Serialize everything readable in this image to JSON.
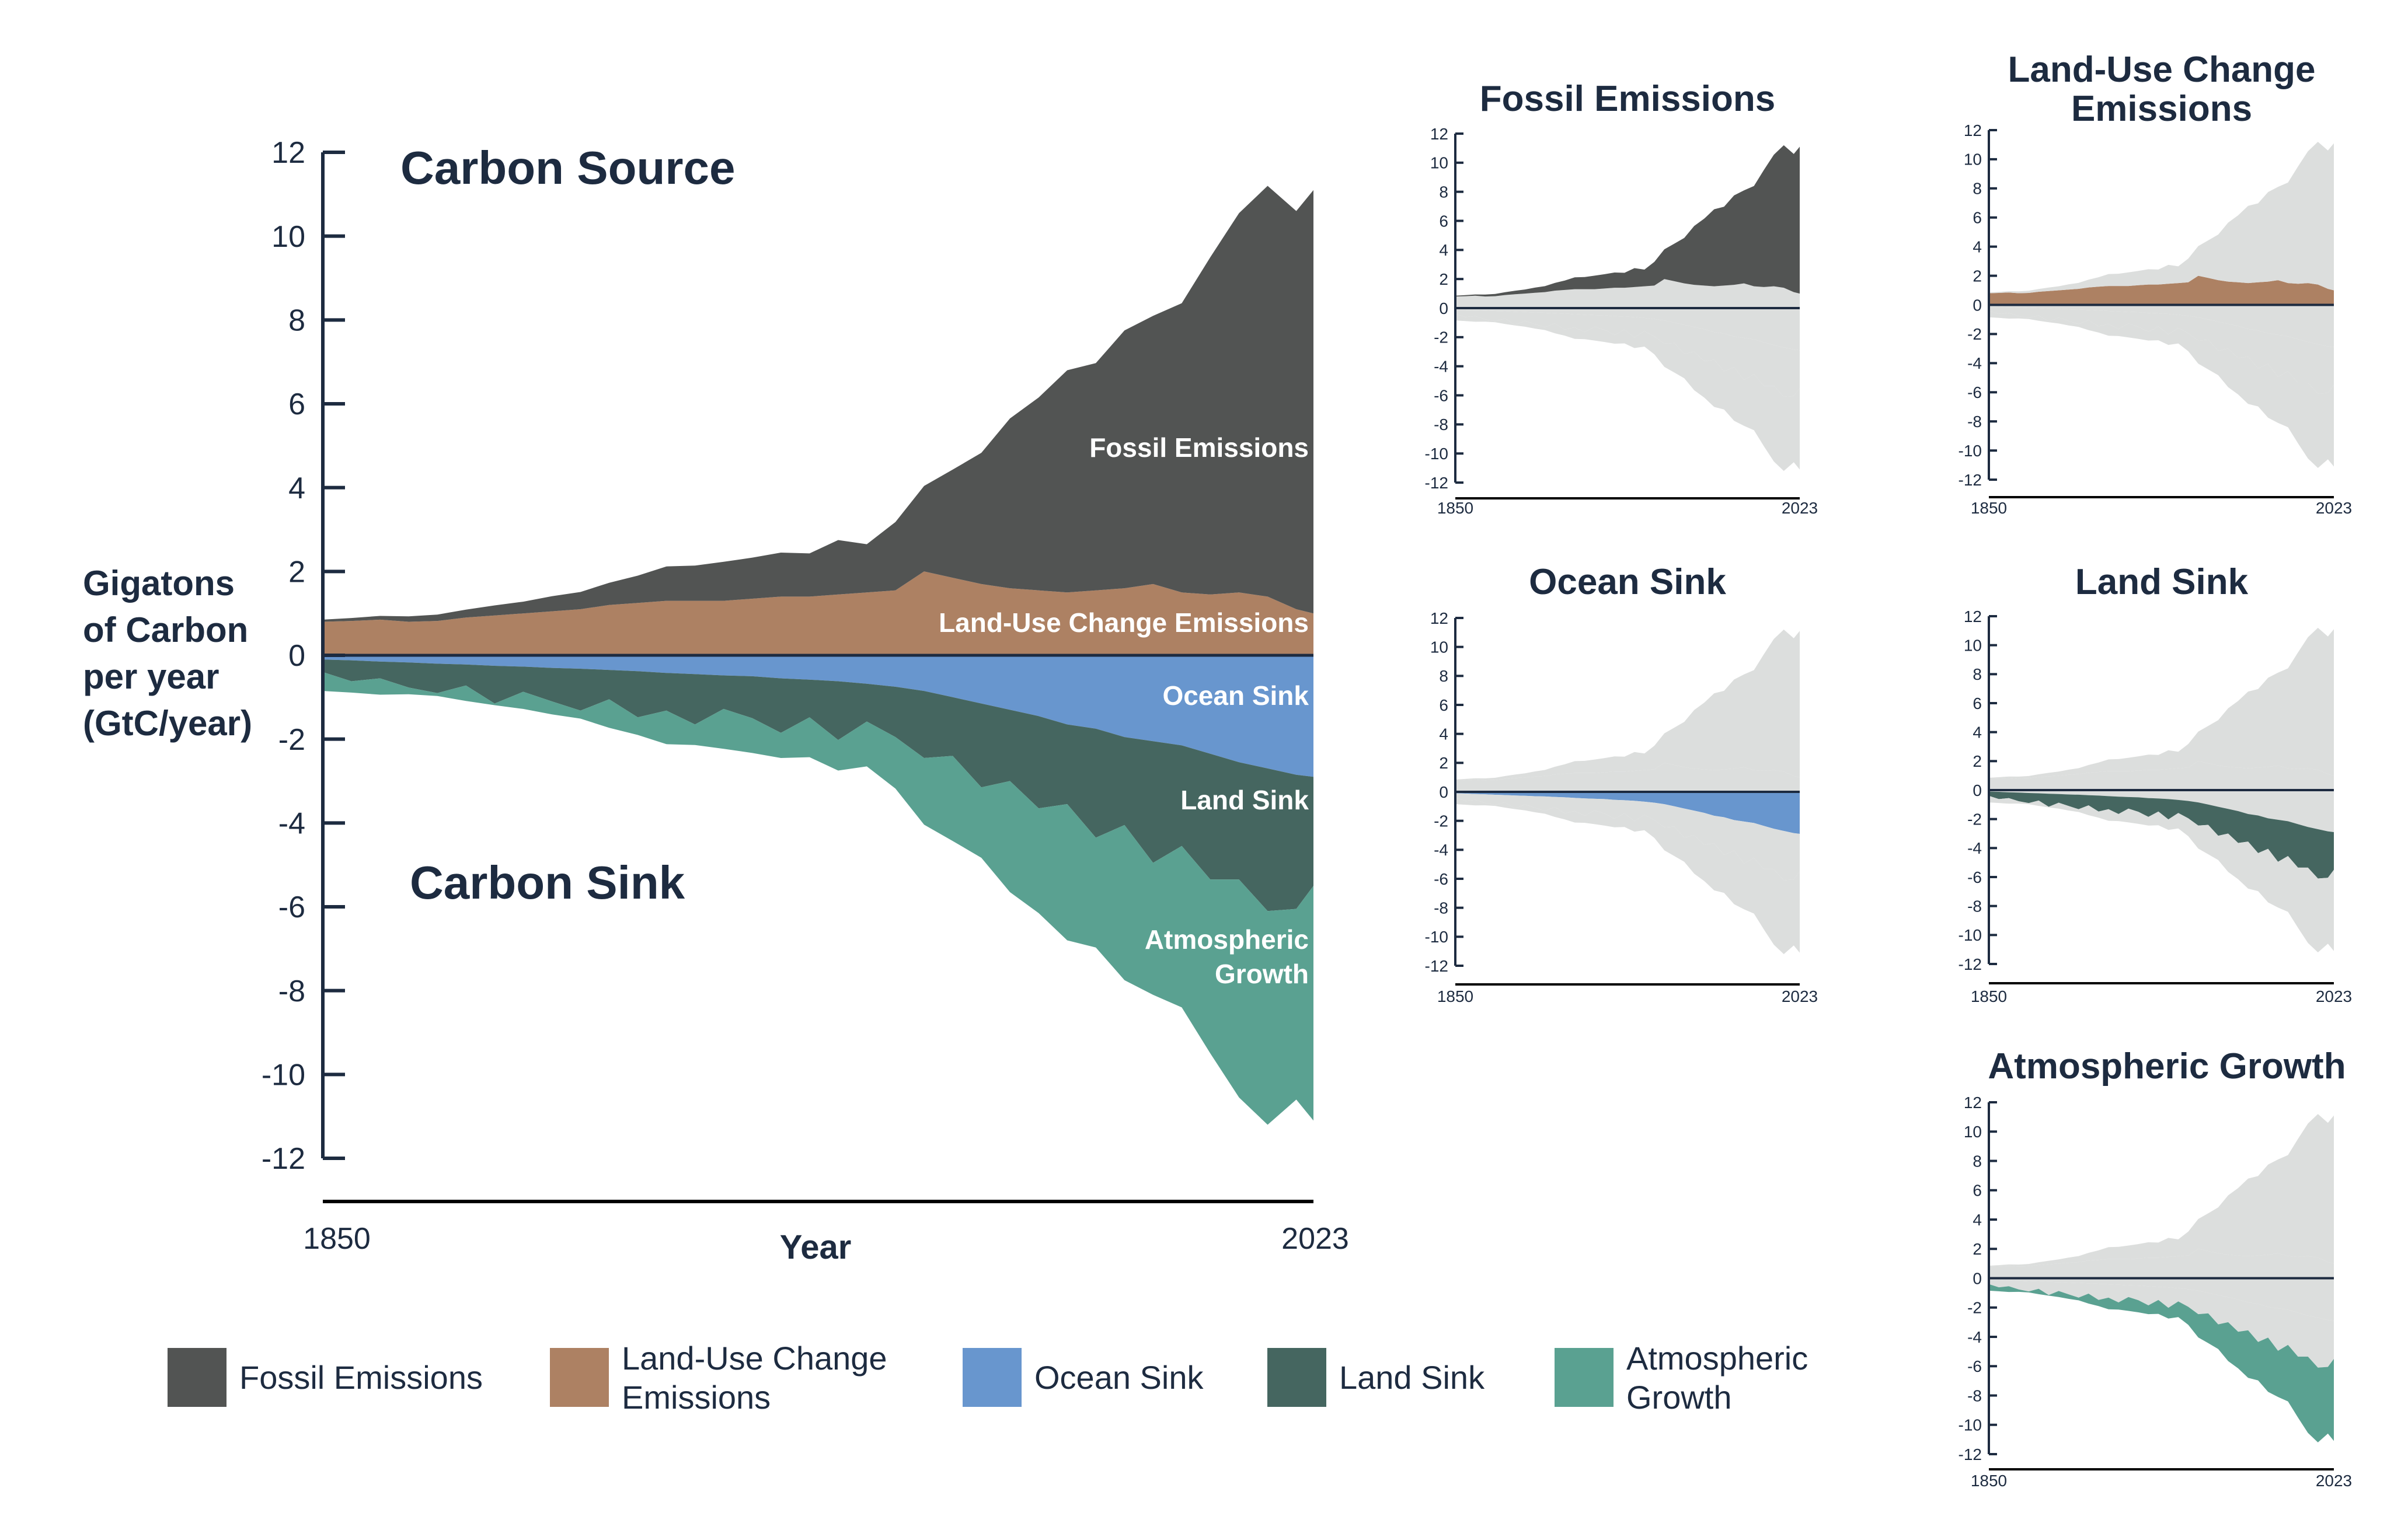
{
  "chart_data": {
    "type": "area",
    "stacked": true,
    "main": {
      "title_source": "Carbon Source",
      "title_sink": "Carbon Sink",
      "ylabel_lines": [
        "Gigatons",
        "of Carbon",
        "per year",
        "(GtC/year)"
      ],
      "xlabel": "Year",
      "xlim": [
        1850,
        2023
      ],
      "ylim": [
        -12,
        12
      ],
      "yticks": [
        12,
        10,
        8,
        6,
        4,
        2,
        0,
        -2,
        -4,
        -6,
        -8,
        -10,
        -12
      ],
      "xtick_labels": [
        "1850",
        "2023"
      ],
      "series_labels": {
        "fossil": "Fossil Emissions",
        "luc": "Land-Use Change Emissions",
        "ocean": "Ocean Sink",
        "land": "Land Sink",
        "atmos_lines": [
          "Atmospheric",
          "Growth"
        ]
      }
    },
    "years": [
      1850,
      1855,
      1860,
      1865,
      1870,
      1875,
      1880,
      1885,
      1890,
      1895,
      1900,
      1905,
      1910,
      1915,
      1920,
      1925,
      1930,
      1935,
      1940,
      1945,
      1950,
      1955,
      1960,
      1965,
      1970,
      1975,
      1980,
      1985,
      1990,
      1995,
      2000,
      2005,
      2010,
      2015,
      2020,
      2023
    ],
    "series": [
      {
        "key": "fossil",
        "name": "Fossil Emissions",
        "color": "#525453",
        "values": [
          0.05,
          0.07,
          0.09,
          0.13,
          0.15,
          0.19,
          0.24,
          0.28,
          0.36,
          0.41,
          0.53,
          0.65,
          0.82,
          0.84,
          0.93,
          0.98,
          1.05,
          1.03,
          1.3,
          1.15,
          1.63,
          2.04,
          2.58,
          3.13,
          4.05,
          4.6,
          5.3,
          5.42,
          6.15,
          6.4,
          6.9,
          8.05,
          9.05,
          9.8,
          9.5,
          10.1
        ]
      },
      {
        "key": "luc",
        "name": "Land-Use Change Emissions",
        "color": "#ad8163",
        "values": [
          0.8,
          0.82,
          0.85,
          0.8,
          0.82,
          0.9,
          0.95,
          1.0,
          1.05,
          1.1,
          1.2,
          1.25,
          1.3,
          1.3,
          1.3,
          1.35,
          1.4,
          1.4,
          1.45,
          1.5,
          1.55,
          2.0,
          1.85,
          1.7,
          1.6,
          1.55,
          1.5,
          1.55,
          1.6,
          1.7,
          1.5,
          1.45,
          1.5,
          1.4,
          1.1,
          1.0
        ]
      },
      {
        "key": "ocean",
        "name": "Ocean Sink",
        "color": "#6896ce",
        "values": [
          -0.1,
          -0.12,
          -0.15,
          -0.17,
          -0.2,
          -0.22,
          -0.25,
          -0.27,
          -0.3,
          -0.32,
          -0.35,
          -0.38,
          -0.42,
          -0.45,
          -0.48,
          -0.5,
          -0.55,
          -0.58,
          -0.62,
          -0.68,
          -0.75,
          -0.85,
          -1.0,
          -1.15,
          -1.3,
          -1.45,
          -1.65,
          -1.75,
          -1.95,
          -2.05,
          -2.15,
          -2.35,
          -2.55,
          -2.7,
          -2.85,
          -2.9
        ]
      },
      {
        "key": "land",
        "name": "Land Sink",
        "color": "#456660",
        "values": [
          -0.3,
          -0.5,
          -0.4,
          -0.6,
          -0.7,
          -0.5,
          -0.9,
          -0.6,
          -0.8,
          -1.0,
          -0.7,
          -1.1,
          -0.9,
          -1.2,
          -0.8,
          -1.0,
          -1.3,
          -0.9,
          -1.4,
          -0.9,
          -1.2,
          -1.6,
          -1.4,
          -2.0,
          -1.7,
          -2.2,
          -1.9,
          -2.6,
          -2.1,
          -2.9,
          -2.4,
          -3.0,
          -2.8,
          -3.4,
          -3.2,
          -2.6
        ]
      },
      {
        "key": "atmos",
        "name": "Atmospheric Growth",
        "color": "#5aa191",
        "values": [
          -0.45,
          -0.27,
          -0.39,
          -0.16,
          -0.07,
          -0.37,
          -0.04,
          -0.41,
          -0.31,
          -0.19,
          -0.68,
          -0.42,
          -0.8,
          -0.49,
          -0.95,
          -0.83,
          -0.6,
          -0.95,
          -0.73,
          -1.07,
          -1.23,
          -1.59,
          -2.03,
          -1.68,
          -2.65,
          -2.5,
          -3.25,
          -2.62,
          -3.7,
          -3.15,
          -3.85,
          -4.15,
          -5.2,
          -5.1,
          -4.55,
          -5.6
        ]
      }
    ],
    "small_multiples": [
      {
        "key": "fossil",
        "title_lines": [
          "Fossil Emissions"
        ]
      },
      {
        "key": "luc",
        "title_lines": [
          "Land-Use Change",
          "Emissions"
        ]
      },
      {
        "key": "ocean",
        "title_lines": [
          "Ocean Sink"
        ]
      },
      {
        "key": "land",
        "title_lines": [
          "Land Sink"
        ]
      },
      {
        "key": "atmos",
        "title_lines": [
          "Atmospheric Growth"
        ]
      }
    ],
    "small_yticks": [
      12,
      10,
      8,
      6,
      4,
      2,
      0,
      -2,
      -4,
      -6,
      -8,
      -10,
      -12
    ],
    "small_xtick_labels": [
      "1850",
      "2023"
    ],
    "context_color": "#dcdedd",
    "axis_color": "#1d2b40",
    "legend": {
      "placement": "bottom",
      "items": [
        {
          "key": "fossil",
          "lines": [
            "Fossil Emissions"
          ],
          "color": "#525453"
        },
        {
          "key": "luc",
          "lines": [
            "Land-Use Change",
            "Emissions"
          ],
          "color": "#ad8163"
        },
        {
          "key": "ocean",
          "lines": [
            "Ocean Sink"
          ],
          "color": "#6896ce"
        },
        {
          "key": "land",
          "lines": [
            "Land Sink"
          ],
          "color": "#456660"
        },
        {
          "key": "atmos",
          "lines": [
            "Atmospheric",
            "Growth"
          ],
          "color": "#5aa191"
        }
      ]
    }
  }
}
